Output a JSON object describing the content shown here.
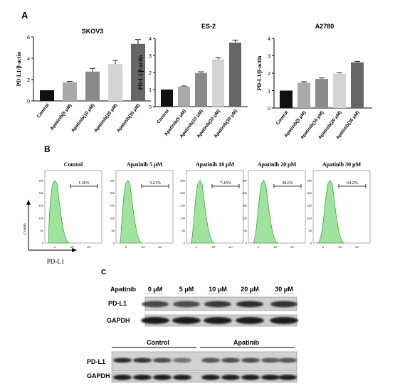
{
  "panels": {
    "a": "A",
    "b": "B",
    "c": "C"
  },
  "colors": {
    "bars": [
      "#111111",
      "#a9a9a9",
      "#8a8a8a",
      "#d4d4d4",
      "#666666"
    ],
    "histFill": "#9fe39f",
    "histStroke": "#3aaa3a"
  },
  "chart_data": [
    {
      "type": "bar",
      "title": "SKOV3",
      "ylabel": "PD-L1/β-actin",
      "ylim": [
        0,
        6
      ],
      "yticks": [
        "0",
        "2",
        "4",
        "6"
      ],
      "categories": [
        "Control",
        "Apatinib(5 μM)",
        "Apatinib(10 μM)",
        "Apatinib(20 μM)",
        "Apatinib(30 μM)"
      ],
      "values": [
        1.0,
        1.75,
        2.75,
        3.45,
        5.35
      ],
      "errors": [
        0.0,
        0.08,
        0.3,
        0.35,
        0.4
      ]
    },
    {
      "type": "bar",
      "title": "ES-2",
      "ylabel": "PD-L1/β-actin",
      "ylim": [
        0,
        4
      ],
      "yticks": [
        "0",
        "1",
        "2",
        "3",
        "4"
      ],
      "categories": [
        "Control",
        "Apatinib(5 μM)",
        "Apatinib(10 μM)",
        "Apatinib(20 μM)",
        "Apatinib(30 μM)"
      ],
      "values": [
        1.0,
        1.18,
        1.97,
        2.77,
        3.75
      ],
      "errors": [
        0.0,
        0.03,
        0.07,
        0.1,
        0.15
      ]
    },
    {
      "type": "bar",
      "title": "A2780",
      "ylabel": "PD-L1/β-actin",
      "ylim": [
        0,
        4
      ],
      "yticks": [
        "0",
        "1",
        "2",
        "3",
        "4"
      ],
      "categories": [
        "Control",
        "Apatinib(5 μM)",
        "Apatinib(10 μM)",
        "Apatinib(20 μM)",
        "Apatinib(30 μM)"
      ],
      "values": [
        1.0,
        1.45,
        1.67,
        1.97,
        2.62
      ],
      "errors": [
        0.0,
        0.06,
        0.06,
        0.05,
        0.06
      ]
    },
    {
      "type": "histogram",
      "xlabel": "PD-L1",
      "ylabel": "Counts",
      "yticks": [
        "250",
        "200",
        "150",
        "100",
        "50",
        "0"
      ],
      "xticks": [
        "0",
        "10²",
        "10⁴"
      ],
      "panels": [
        {
          "title": "Control",
          "percent": "1.36%",
          "peak": 0.52
        },
        {
          "title": "Apatinib 5 μM",
          "percent": "3.21%",
          "peak": 0.55
        },
        {
          "title": "Apatinib 10 μM",
          "percent": "7.43%",
          "peak": 0.6
        },
        {
          "title": "Apatinib 20 μM",
          "percent": "38.6%",
          "peak": 0.66
        },
        {
          "title": "Apatinib 30 μM",
          "percent": "64.2%",
          "peak": 0.68
        }
      ]
    },
    {
      "type": "western-blot",
      "treatment_label": "Apatinib",
      "doses": [
        "0 μM",
        "5 μM",
        "10 μM",
        "20 μM",
        "30 μM"
      ],
      "bands": [
        "PD-L1",
        "GAPDH"
      ],
      "group_labels": [
        "Control",
        "Apatinib"
      ],
      "pdl1_intensity": [
        0.55,
        0.5,
        0.7,
        0.85,
        0.8
      ]
    }
  ]
}
